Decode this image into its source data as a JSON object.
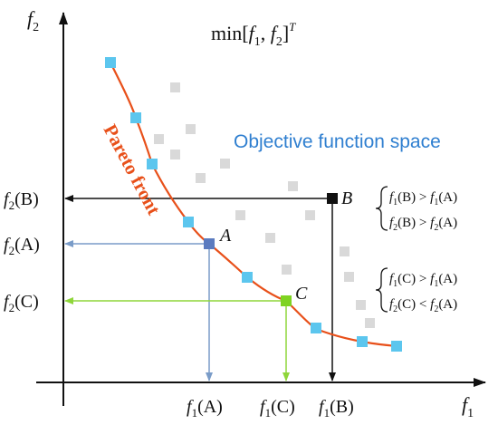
{
  "axes": {
    "x_label": "f",
    "x_label_sub": "1",
    "y_label": "f",
    "y_label_sub": "2"
  },
  "title": {
    "prefix": "min[",
    "f": "f",
    "sub1": "1",
    "sep": ", ",
    "sub2": "2",
    "suffix": "]",
    "sup": "T"
  },
  "space_label": "Objective function space",
  "pareto_label": "Pareto front",
  "points": {
    "A": "A",
    "B": "B",
    "C": "C"
  },
  "y_ticks": [
    {
      "f": "f",
      "sub": "2",
      "arg": "(B)"
    },
    {
      "f": "f",
      "sub": "2",
      "arg": "(A)"
    },
    {
      "f": "f",
      "sub": "2",
      "arg": "(C)"
    }
  ],
  "x_ticks": [
    {
      "f": "f",
      "sub": "1",
      "arg": "(A)"
    },
    {
      "f": "f",
      "sub": "1",
      "arg": "(C)"
    },
    {
      "f": "f",
      "sub": "1",
      "arg": "(B)"
    }
  ],
  "conditions_B": [
    {
      "lhs": "f",
      "lsub": "1",
      "larg": "(B)",
      "op": ">",
      "rhs": "f",
      "rsub": "1",
      "rarg": "(A)"
    },
    {
      "lhs": "f",
      "lsub": "2",
      "larg": "(B)",
      "op": ">",
      "rhs": "f",
      "rsub": "2",
      "rarg": "(A)"
    }
  ],
  "conditions_C": [
    {
      "lhs": "f",
      "lsub": "1",
      "larg": "(C)",
      "op": ">",
      "rhs": "f",
      "rsub": "1",
      "rarg": "(A)"
    },
    {
      "lhs": "f",
      "lsub": "2",
      "larg": "(C)",
      "op": "<",
      "rhs": "f",
      "rsub": "2",
      "rarg": "(A)"
    }
  ],
  "colors": {
    "axis": "#111111",
    "pareto_curve": "#e8501a",
    "pareto_points": "#5cc6ee",
    "dominated_points": "#d9d9d9",
    "point_A": "#5b7bbf",
    "point_B": "#111111",
    "point_C": "#7ed321",
    "arrow_A": "#7a9cc8",
    "arrow_C": "#8fd63a",
    "arrow_B": "#111111",
    "space_label": "#2f7fd0",
    "pareto_label": "#e8501a"
  }
}
